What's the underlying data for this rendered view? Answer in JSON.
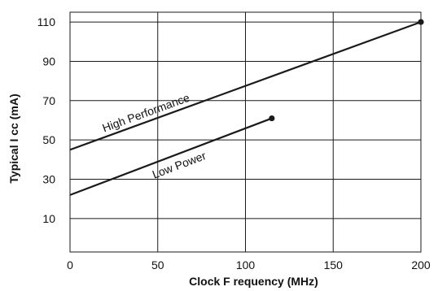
{
  "chart_data": {
    "type": "line",
    "xlabel": "Clock F requency  (MHz)",
    "ylabel": "Typical I cc  (mA)",
    "xlim": [
      0,
      200
    ],
    "ylim": [
      -7,
      115
    ],
    "grid": true,
    "x_ticks": [
      0,
      50,
      100,
      150,
      200
    ],
    "x_tick_labels": [
      "0",
      "50",
      "100",
      "150",
      "200"
    ],
    "y_ticks": [
      10,
      30,
      50,
      70,
      90,
      110
    ],
    "y_tick_labels": [
      "10",
      "30",
      "50",
      "70",
      "90",
      "110"
    ],
    "series": [
      {
        "name": "High Performance",
        "x": [
          0,
          200
        ],
        "y": [
          45,
          110
        ],
        "end_marker": true,
        "label_at_x": 45
      },
      {
        "name": "Low Power",
        "x": [
          0,
          115
        ],
        "y": [
          22,
          61
        ],
        "end_marker": true,
        "label_at_x": 60
      }
    ],
    "line_color": "#1a1a1a",
    "grid_color": "#1a1a1a"
  }
}
